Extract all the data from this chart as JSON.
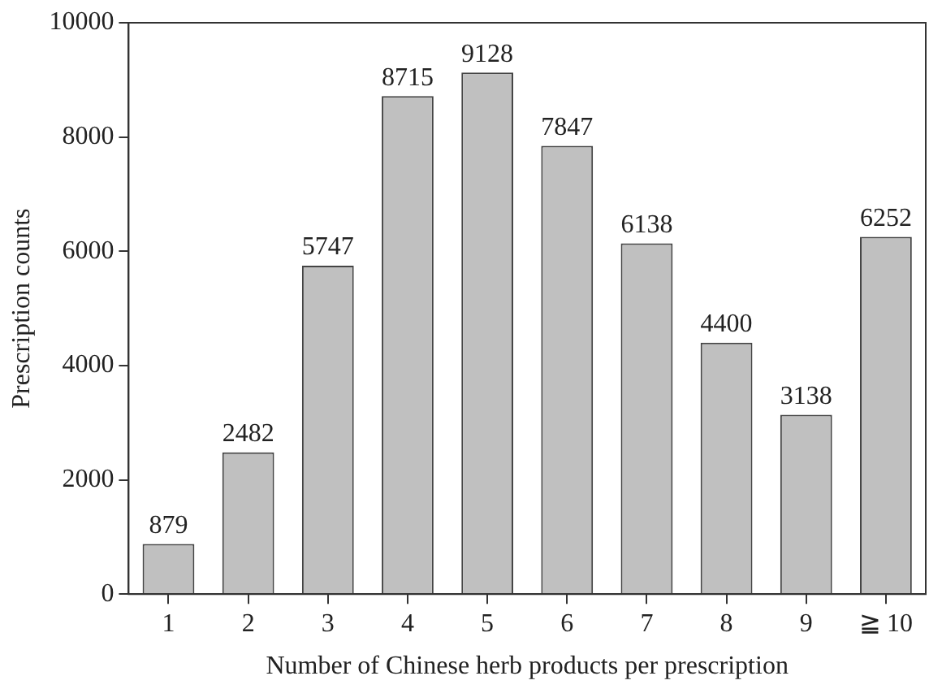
{
  "chart_data": {
    "type": "bar",
    "xlabel": "Number of Chinese herb products per prescription",
    "ylabel": "Prescription counts",
    "categories": [
      "1",
      "2",
      "3",
      "4",
      "5",
      "6",
      "7",
      "8",
      "9",
      "≧ 10"
    ],
    "values": [
      879,
      2482,
      5747,
      8715,
      9128,
      7847,
      6138,
      4400,
      3138,
      6252
    ],
    "color": "#c0c0c0",
    "ylim": [
      0,
      10000
    ],
    "yticks": [
      0,
      2000,
      4000,
      6000,
      8000,
      10000
    ],
    "grid": false,
    "legend": false,
    "data_labels": true
  }
}
